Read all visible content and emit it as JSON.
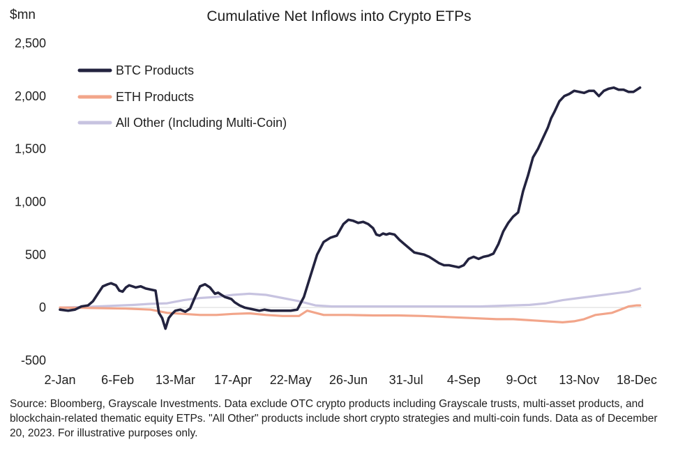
{
  "chart_data": {
    "type": "line",
    "title": "Cumulative Net Inflows into Crypto ETPs",
    "unit_label": "$mn",
    "xlabel": "",
    "ylabel": "$mn",
    "ylim": [
      -500,
      2500
    ],
    "yticks": [
      -500,
      0,
      500,
      1000,
      1500,
      2000,
      2500
    ],
    "ytick_labels": [
      "-500",
      "0",
      "500",
      "1,000",
      "1,500",
      "2,000",
      "2,500"
    ],
    "xlim": [
      0,
      353
    ],
    "xticks": [
      0,
      35,
      70,
      105,
      140,
      175,
      210,
      245,
      280,
      315,
      350
    ],
    "xtick_labels": [
      "2-Jan",
      "6-Feb",
      "13-Mar",
      "17-Apr",
      "22-May",
      "26-Jun",
      "31-Jul",
      "4-Sep",
      "9-Oct",
      "13-Nov",
      "18-Dec"
    ],
    "grid": false,
    "legend_position": "top-left",
    "series": [
      {
        "name": "BTC Products",
        "color": "#23233f",
        "x": [
          0,
          5,
          9,
          13,
          17,
          20,
          23,
          26,
          29,
          31,
          34,
          36,
          38,
          40,
          42,
          44,
          46,
          49,
          52,
          55,
          58,
          60,
          62,
          63,
          64,
          66,
          68,
          70,
          73,
          76,
          79,
          82,
          85,
          88,
          91,
          94,
          96,
          98,
          100,
          102,
          104,
          106,
          109,
          112,
          115,
          118,
          121,
          124,
          128,
          132,
          136,
          140,
          144,
          148,
          152,
          156,
          160,
          164,
          168,
          172,
          175,
          178,
          181,
          184,
          187,
          190,
          192,
          194,
          196,
          198,
          200,
          203,
          206,
          209,
          212,
          215,
          218,
          221,
          224,
          227,
          230,
          233,
          236,
          239,
          242,
          245,
          248,
          251,
          254,
          257,
          260,
          263,
          266,
          269,
          272,
          275,
          278,
          281,
          284,
          287,
          290,
          293,
          296,
          298,
          300,
          303,
          306,
          309,
          312,
          315,
          318,
          321,
          324,
          327,
          330,
          333,
          336,
          339,
          342,
          345,
          348,
          350,
          352
        ],
        "values": [
          -20,
          -30,
          -20,
          10,
          20,
          60,
          130,
          200,
          220,
          230,
          210,
          160,
          150,
          190,
          210,
          200,
          190,
          200,
          180,
          170,
          160,
          -50,
          -100,
          -150,
          -200,
          -100,
          -60,
          -30,
          -20,
          -40,
          -10,
          100,
          200,
          220,
          190,
          130,
          140,
          120,
          100,
          90,
          80,
          50,
          20,
          0,
          -10,
          -20,
          -30,
          -20,
          -30,
          -30,
          -30,
          -30,
          -20,
          100,
          300,
          500,
          620,
          660,
          680,
          790,
          830,
          820,
          800,
          810,
          790,
          750,
          690,
          680,
          700,
          690,
          700,
          690,
          640,
          600,
          560,
          520,
          510,
          500,
          480,
          450,
          420,
          400,
          400,
          390,
          380,
          400,
          460,
          480,
          460,
          480,
          490,
          510,
          600,
          720,
          800,
          860,
          900,
          1100,
          1250,
          1420,
          1500,
          1600,
          1700,
          1790,
          1850,
          1950,
          2000,
          2020,
          2050,
          2040,
          2030,
          2050,
          2050,
          2000,
          2050,
          2070,
          2080,
          2060,
          2060,
          2040,
          2040,
          2060,
          2080
        ]
      },
      {
        "name": "ETH Products",
        "color": "#f2a58a",
        "x": [
          0,
          20,
          40,
          55,
          65,
          75,
          85,
          95,
          105,
          115,
          125,
          135,
          145,
          150,
          160,
          175,
          190,
          205,
          220,
          235,
          250,
          265,
          275,
          285,
          295,
          305,
          312,
          318,
          325,
          330,
          335,
          340,
          345,
          350,
          352
        ],
        "values": [
          0,
          -5,
          -10,
          -20,
          -50,
          -60,
          -70,
          -70,
          -60,
          -55,
          -70,
          -80,
          -80,
          -30,
          -70,
          -70,
          -75,
          -75,
          -80,
          -90,
          -100,
          -110,
          -110,
          -120,
          -130,
          -140,
          -130,
          -110,
          -70,
          -60,
          -50,
          -20,
          10,
          20,
          20
        ]
      },
      {
        "name": "All Other (Including Multi-Coin)",
        "color": "#c7c3e0",
        "x": [
          0,
          15,
          30,
          45,
          55,
          65,
          75,
          85,
          95,
          105,
          115,
          125,
          135,
          145,
          155,
          165,
          180,
          195,
          210,
          225,
          240,
          255,
          265,
          275,
          285,
          295,
          305,
          315,
          325,
          335,
          345,
          352
        ],
        "values": [
          0,
          5,
          15,
          25,
          35,
          40,
          70,
          90,
          100,
          120,
          130,
          120,
          90,
          60,
          20,
          10,
          10,
          10,
          10,
          10,
          10,
          10,
          15,
          20,
          25,
          40,
          70,
          90,
          110,
          130,
          150,
          180
        ]
      }
    ]
  },
  "footer": {
    "source": "Source: Bloomberg, Grayscale Investments. Data exclude OTC crypto products including Grayscale trusts, multi-asset products, and blockchain-related thematic equity ETPs.  \"All Other\" products include short crypto strategies and multi-coin funds. Data as of December 20, 2023. For illustrative purposes only."
  }
}
